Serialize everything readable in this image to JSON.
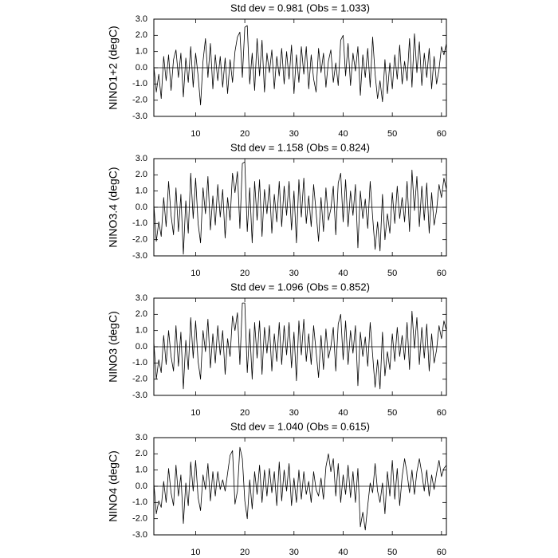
{
  "chart_data": [
    {
      "type": "line",
      "title": "Std dev = 0.981 (Obs = 1.033)",
      "y_label": "NINO1+2 (degC)",
      "x": [
        1.5,
        2,
        2.5,
        3,
        3.5,
        4,
        4.5,
        5,
        5.5,
        6,
        6.5,
        7,
        7.5,
        8,
        8.5,
        9,
        9.5,
        10,
        10.5,
        11,
        11.5,
        12,
        12.5,
        13,
        13.5,
        14,
        14.5,
        15,
        15.5,
        16,
        16.5,
        17,
        17.5,
        18,
        18.5,
        19,
        19.5,
        20,
        20.5,
        21,
        21.5,
        22,
        22.5,
        23,
        23.5,
        24,
        24.5,
        25,
        25.5,
        26,
        26.5,
        27,
        27.5,
        28,
        28.5,
        29,
        29.5,
        30,
        30.5,
        31,
        31.5,
        32,
        32.5,
        33,
        33.5,
        34,
        34.5,
        35,
        35.5,
        36,
        36.5,
        37,
        37.5,
        38,
        38.5,
        39,
        39.5,
        40,
        40.5,
        41,
        41.5,
        42,
        42.5,
        43,
        43.5,
        44,
        44.5,
        45,
        45.5,
        46,
        46.5,
        47,
        47.5,
        48,
        48.5,
        49,
        49.5,
        50,
        50.5,
        51,
        51.5,
        52,
        52.5,
        53,
        53.5,
        54,
        54.5,
        55,
        55.5,
        56,
        56.5,
        57,
        57.5,
        58,
        58.5,
        59,
        59.5,
        60,
        60.5,
        61
      ],
      "values": [
        0.1,
        -1.5,
        -0.4,
        -1.9,
        0.7,
        -0.8,
        0.8,
        -1.4,
        0.5,
        1.1,
        -0.6,
        0.9,
        -1.8,
        0.6,
        -0.9,
        1.3,
        -1.2,
        0.9,
        -0.5,
        -2.3,
        0.4,
        1.8,
        -0.6,
        1.5,
        -1.3,
        0.8,
        -0.8,
        0.7,
        -1.2,
        0.6,
        -1.6,
        0.5,
        -0.9,
        1.0,
        1.9,
        2.2,
        -0.6,
        2.5,
        2.6,
        -1.0,
        0.9,
        -1.4,
        1.8,
        -0.5,
        1.7,
        -1.5,
        0.9,
        -0.3,
        1.1,
        -1.3,
        0.7,
        -0.5,
        1.2,
        -1.0,
        1.0,
        -0.7,
        1.4,
        -1.6,
        0.8,
        -0.9,
        1.3,
        -0.4,
        1.3,
        -1.3,
        0.8,
        -0.7,
        -1.5,
        1.2,
        -0.3,
        0.9,
        -1.2,
        0.4,
        1.1,
        -0.9,
        0.3,
        -1.1,
        1.7,
        2.0,
        -0.5,
        1.5,
        -1.1,
        0.9,
        -0.2,
        1.3,
        -1.7,
        0.8,
        -0.6,
        1.2,
        -1.2,
        1.9,
        -0.4,
        -1.9,
        -0.8,
        -2.1,
        0.5,
        -1.6,
        0.3,
        -1.3,
        0.8,
        -0.7,
        1.4,
        -1.0,
        0.4,
        -0.8,
        1.8,
        -1.2,
        2.1,
        -0.3,
        1.6,
        -1.1,
        0.9,
        -0.6,
        1.2,
        -1.3,
        0.7,
        -1.0,
        -0.1,
        1.3,
        0.8,
        1.5
      ],
      "color": "#000000",
      "reference_line": 0,
      "xlim": [
        1.5,
        61
      ],
      "xticks": [
        10,
        20,
        30,
        40,
        50,
        60
      ],
      "ylim": [
        -3,
        3
      ],
      "yticks": [
        {
          "value": -3,
          "label": "-3.0"
        },
        {
          "value": -2,
          "label": "-2.0"
        },
        {
          "value": -1,
          "label": "-1.0"
        },
        {
          "value": 0,
          "label": "0.0"
        },
        {
          "value": 1,
          "label": "1.0"
        },
        {
          "value": 2,
          "label": "2.0"
        },
        {
          "value": 3,
          "label": "3.0"
        }
      ]
    },
    {
      "type": "line",
      "title": "Std dev = 1.158 (Obs = 0.824)",
      "y_label": "NINO3.4 (degC)",
      "x": [
        1.5,
        2,
        2.5,
        3,
        3.5,
        4,
        4.5,
        5,
        5.5,
        6,
        6.5,
        7,
        7.5,
        8,
        8.5,
        9,
        9.5,
        10,
        10.5,
        11,
        11.5,
        12,
        12.5,
        13,
        13.5,
        14,
        14.5,
        15,
        15.5,
        16,
        16.5,
        17,
        17.5,
        18,
        18.5,
        19,
        19.5,
        20,
        20.5,
        21,
        21.5,
        22,
        22.5,
        23,
        23.5,
        24,
        24.5,
        25,
        25.5,
        26,
        26.5,
        27,
        27.5,
        28,
        28.5,
        29,
        29.5,
        30,
        30.5,
        31,
        31.5,
        32,
        32.5,
        33,
        33.5,
        34,
        34.5,
        35,
        35.5,
        36,
        36.5,
        37,
        37.5,
        38,
        38.5,
        39,
        39.5,
        40,
        40.5,
        41,
        41.5,
        42,
        42.5,
        43,
        43.5,
        44,
        44.5,
        45,
        45.5,
        46,
        46.5,
        47,
        47.5,
        48,
        48.5,
        49,
        49.5,
        50,
        50.5,
        51,
        51.5,
        52,
        52.5,
        53,
        53.5,
        54,
        54.5,
        55,
        55.5,
        56,
        56.5,
        57,
        57.5,
        58,
        58.5,
        59,
        59.5,
        60,
        60.5,
        61
      ],
      "values": [
        0.2,
        -2.1,
        -0.9,
        -1.8,
        0.6,
        -1.2,
        1.6,
        -0.5,
        -1.7,
        1.2,
        -1.5,
        0.8,
        -2.9,
        0.4,
        -1.6,
        2.1,
        -0.7,
        1.8,
        -1.0,
        -2.2,
        1.2,
        -0.4,
        1.9,
        -1.4,
        0.7,
        -1.1,
        1.4,
        -0.6,
        1.1,
        -1.9,
        0.6,
        -0.8,
        2.1,
        0.9,
        2.2,
        -1.3,
        2.7,
        2.8,
        -1.5,
        1.2,
        -2.2,
        1.6,
        -0.8,
        1.7,
        -1.8,
        1.1,
        -0.4,
        1.4,
        -1.6,
        0.8,
        -0.9,
        1.6,
        -1.2,
        1.3,
        -0.5,
        1.6,
        -1.4,
        1.0,
        -2.2,
        1.7,
        -0.6,
        1.8,
        -1.0,
        0.7,
        -1.2,
        1.4,
        -0.3,
        -2.1,
        0.6,
        -1.5,
        1.2,
        -0.8,
        -0.1,
        1.3,
        -1.7,
        1.5,
        2.1,
        -0.9,
        1.7,
        -1.2,
        1.0,
        -0.5,
        1.4,
        -2.5,
        1.0,
        -0.7,
        0.5,
        -1.3,
        1.6,
        -0.6,
        -2.6,
        -0.9,
        -2.7,
        0.8,
        -2.0,
        -0.4,
        -1.6,
        0.9,
        -1.0,
        1.3,
        -0.7,
        0.6,
        -0.9,
        1.6,
        -1.5,
        2.3,
        -0.2,
        1.9,
        -1.2,
        1.3,
        -0.8,
        1.5,
        -1.6,
        0.9,
        -1.1,
        -0.2,
        1.4,
        0.6,
        1.8,
        1.1
      ],
      "color": "#000000",
      "reference_line": 0,
      "xlim": [
        1.5,
        61
      ],
      "xticks": [
        10,
        20,
        30,
        40,
        50,
        60
      ],
      "ylim": [
        -3,
        3
      ],
      "yticks": [
        {
          "value": -3,
          "label": "-3.0"
        },
        {
          "value": -2,
          "label": "-2.0"
        },
        {
          "value": -1,
          "label": "-1.0"
        },
        {
          "value": 0,
          "label": "0.0"
        },
        {
          "value": 1,
          "label": "1.0"
        },
        {
          "value": 2,
          "label": "2.0"
        },
        {
          "value": 3,
          "label": "3.0"
        }
      ]
    },
    {
      "type": "line",
      "title": "Std dev = 1.096 (Obs = 0.852)",
      "y_label": "NINO3 (degC)",
      "x": [
        1.5,
        2,
        2.5,
        3,
        3.5,
        4,
        4.5,
        5,
        5.5,
        6,
        6.5,
        7,
        7.5,
        8,
        8.5,
        9,
        9.5,
        10,
        10.5,
        11,
        11.5,
        12,
        12.5,
        13,
        13.5,
        14,
        14.5,
        15,
        15.5,
        16,
        16.5,
        17,
        17.5,
        18,
        18.5,
        19,
        19.5,
        20,
        20.5,
        21,
        21.5,
        22,
        22.5,
        23,
        23.5,
        24,
        24.5,
        25,
        25.5,
        26,
        26.5,
        27,
        27.5,
        28,
        28.5,
        29,
        29.5,
        30,
        30.5,
        31,
        31.5,
        32,
        32.5,
        33,
        33.5,
        34,
        34.5,
        35,
        35.5,
        36,
        36.5,
        37,
        37.5,
        38,
        38.5,
        39,
        39.5,
        40,
        40.5,
        41,
        41.5,
        42,
        42.5,
        43,
        43.5,
        44,
        44.5,
        45,
        45.5,
        46,
        46.5,
        47,
        47.5,
        48,
        48.5,
        49,
        49.5,
        50,
        50.5,
        51,
        51.5,
        52,
        52.5,
        53,
        53.5,
        54,
        54.5,
        55,
        55.5,
        56,
        56.5,
        57,
        57.5,
        58,
        58.5,
        59,
        59.5,
        60,
        60.5,
        61
      ],
      "values": [
        0.3,
        -2.0,
        -0.8,
        -1.6,
        0.7,
        -1.1,
        1.0,
        -0.6,
        -1.5,
        1.3,
        -1.2,
        0.9,
        -2.6,
        0.4,
        -1.4,
        1.8,
        -0.7,
        1.6,
        -0.9,
        -2.0,
        1.0,
        -0.3,
        1.7,
        -1.3,
        0.8,
        -1.0,
        1.3,
        -0.5,
        1.0,
        -1.7,
        0.5,
        -0.6,
        1.9,
        1.0,
        2.1,
        -1.1,
        2.7,
        2.7,
        -1.6,
        1.1,
        -2.0,
        1.5,
        -0.7,
        1.6,
        -1.7,
        1.2,
        -0.4,
        1.3,
        -1.5,
        0.8,
        -0.9,
        1.5,
        -1.1,
        1.3,
        -0.5,
        1.5,
        -1.3,
        0.9,
        -2.1,
        1.6,
        -0.5,
        1.7,
        -0.9,
        0.8,
        -1.1,
        1.3,
        -0.3,
        -1.9,
        0.7,
        -1.4,
        1.1,
        -0.7,
        0.0,
        1.2,
        -1.5,
        1.4,
        2.0,
        -0.8,
        1.6,
        -1.1,
        1.0,
        -0.4,
        1.3,
        -2.4,
        0.9,
        -0.6,
        0.6,
        -1.2,
        1.5,
        -0.5,
        -2.5,
        -0.8,
        -2.6,
        0.9,
        -1.8,
        -0.3,
        -1.4,
        0.8,
        -0.9,
        1.2,
        -0.6,
        0.7,
        -0.8,
        1.5,
        -1.4,
        2.2,
        -0.1,
        1.8,
        -1.1,
        1.2,
        -0.7,
        1.4,
        -1.5,
        0.8,
        -1.0,
        -0.2,
        1.3,
        0.5,
        1.6,
        1.0
      ],
      "color": "#000000",
      "reference_line": 0,
      "xlim": [
        1.5,
        61
      ],
      "xticks": [
        10,
        20,
        30,
        40,
        50,
        60
      ],
      "ylim": [
        -3,
        3
      ],
      "yticks": [
        {
          "value": -3,
          "label": "-3.0"
        },
        {
          "value": -2,
          "label": "-2.0"
        },
        {
          "value": -1,
          "label": "-1.0"
        },
        {
          "value": 0,
          "label": "0.0"
        },
        {
          "value": 1,
          "label": "1.0"
        },
        {
          "value": 2,
          "label": "2.0"
        },
        {
          "value": 3,
          "label": "3.0"
        }
      ]
    },
    {
      "type": "line",
      "title": "Std dev = 1.040 (Obs = 0.615)",
      "y_label": "NINO4 (degC)",
      "x": [
        1.5,
        2,
        2.5,
        3,
        3.5,
        4,
        4.5,
        5,
        5.5,
        6,
        6.5,
        7,
        7.5,
        8,
        8.5,
        9,
        9.5,
        10,
        10.5,
        11,
        11.5,
        12,
        12.5,
        13,
        13.5,
        14,
        14.5,
        15,
        15.5,
        16,
        16.5,
        17,
        17.5,
        18,
        18.5,
        19,
        19.5,
        20,
        20.5,
        21,
        21.5,
        22,
        22.5,
        23,
        23.5,
        24,
        24.5,
        25,
        25.5,
        26,
        26.5,
        27,
        27.5,
        28,
        28.5,
        29,
        29.5,
        30,
        30.5,
        31,
        31.5,
        32,
        32.5,
        33,
        33.5,
        34,
        34.5,
        35,
        35.5,
        36,
        36.5,
        37,
        37.5,
        38,
        38.5,
        39,
        39.5,
        40,
        40.5,
        41,
        41.5,
        42,
        42.5,
        43,
        43.5,
        44,
        44.5,
        45,
        45.5,
        46,
        46.5,
        47,
        47.5,
        48,
        48.5,
        49,
        49.5,
        50,
        50.5,
        51,
        51.5,
        52,
        52.5,
        53,
        53.5,
        54,
        54.5,
        55,
        55.5,
        56,
        56.5,
        57,
        57.5,
        58,
        58.5,
        59,
        59.5,
        60,
        60.5,
        61
      ],
      "values": [
        0.2,
        -1.7,
        -0.9,
        -1.3,
        0.3,
        -1.0,
        1.1,
        -0.4,
        -1.2,
        1.3,
        -0.6,
        0.7,
        -2.3,
        0.2,
        -1.2,
        1.5,
        -0.3,
        1.6,
        -0.7,
        -1.5,
        0.7,
        -0.2,
        1.4,
        -0.9,
        0.9,
        -0.6,
        0.9,
        -0.2,
        0.4,
        -0.3,
        0.8,
        1.9,
        2.2,
        -1.1,
        -0.3,
        2.4,
        1.7,
        -0.9,
        -2.0,
        0.4,
        -1.4,
        0.9,
        -0.5,
        1.3,
        -1.0,
        1.0,
        -0.6,
        1.1,
        -0.4,
        0.9,
        -1.2,
        1.5,
        -0.9,
        1.0,
        -0.3,
        1.4,
        -1.2,
        0.5,
        -1.0,
        1.0,
        -0.8,
        0.9,
        -0.5,
        0.3,
        -1.0,
        0.9,
        -0.2,
        -0.6,
        0.5,
        -0.8,
        1.2,
        2.0,
        0.9,
        1.7,
        -0.6,
        1.4,
        -1.0,
        0.7,
        -0.5,
        1.3,
        -0.7,
        0.9,
        -1.0,
        1.1,
        -2.5,
        -1.6,
        -2.7,
        -1.2,
        0.2,
        -0.4,
        1.4,
        -0.3,
        -1.0,
        0.2,
        -1.7,
        0.9,
        -0.6,
        1.6,
        -0.8,
        1.1,
        -1.2,
        0.6,
        1.7,
        0.8,
        -0.4,
        1.0,
        -0.5,
        0.9,
        1.7,
        0.8,
        -0.3,
        1.0,
        -0.6,
        0.7,
        -0.2,
        0.8,
        1.6,
        0.6,
        1.1,
        1.3
      ],
      "color": "#000000",
      "reference_line": 0,
      "xlim": [
        1.5,
        61
      ],
      "xticks": [
        10,
        20,
        30,
        40,
        50,
        60
      ],
      "ylim": [
        -3,
        3
      ],
      "yticks": [
        {
          "value": -3,
          "label": "-3.0"
        },
        {
          "value": -2,
          "label": "-2.0"
        },
        {
          "value": -1,
          "label": "-1.0"
        },
        {
          "value": 0,
          "label": "0.0"
        },
        {
          "value": 1,
          "label": "1.0"
        },
        {
          "value": 2,
          "label": "2.0"
        },
        {
          "value": 3,
          "label": "3.0"
        }
      ]
    }
  ]
}
